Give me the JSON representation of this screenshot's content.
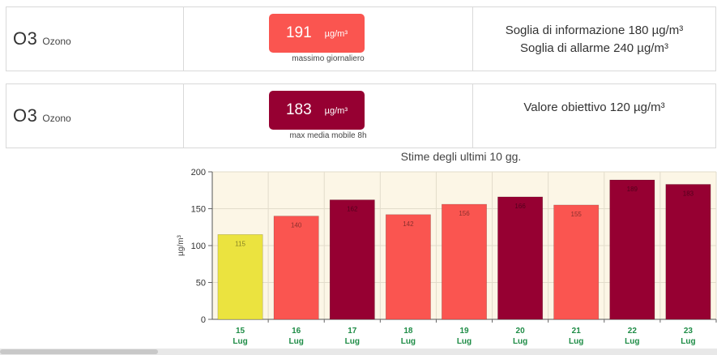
{
  "row1": {
    "symbol": "O3",
    "name": "Ozono",
    "value": "191",
    "unit": "µg/m³",
    "caption": "massimo giornaliero",
    "color": "#fa5550",
    "thresholds": [
      "Soglia di informazione 180 µg/m³",
      "Soglia di allarme 240 µg/m³"
    ]
  },
  "row2": {
    "symbol": "O3",
    "name": "Ozono",
    "value": "183",
    "unit": "µg/m³",
    "caption": "max media mobile 8h",
    "color": "#960032",
    "thresholds": [
      "Valore obiettivo 120 µg/m³"
    ]
  },
  "chart_data": {
    "type": "bar",
    "title": "Stime degli ultimi 10 gg.",
    "ylabel": "µg/m³",
    "ylim": [
      0,
      200
    ],
    "yticks": [
      0,
      50,
      100,
      150,
      200
    ],
    "grid": true,
    "categories": [
      {
        "day": "15",
        "month": "Lug"
      },
      {
        "day": "16",
        "month": "Lug"
      },
      {
        "day": "17",
        "month": "Lug"
      },
      {
        "day": "18",
        "month": "Lug"
      },
      {
        "day": "19",
        "month": "Lug"
      },
      {
        "day": "20",
        "month": "Lug"
      },
      {
        "day": "21",
        "month": "Lug"
      },
      {
        "day": "22",
        "month": "Lug"
      },
      {
        "day": "23",
        "month": "Lug"
      }
    ],
    "values": [
      115,
      140,
      162,
      142,
      156,
      166,
      155,
      189,
      183
    ],
    "labels": [
      "115",
      "140",
      "162",
      "142",
      "156",
      "166",
      "155",
      "189",
      "183"
    ],
    "colors": [
      "#ebe33f",
      "#fa5550",
      "#960032",
      "#fa5550",
      "#fa5550",
      "#960032",
      "#fa5550",
      "#960032",
      "#960032"
    ],
    "plot_background": "#fcf6e6",
    "tick_label_color": "#1e8c46"
  }
}
